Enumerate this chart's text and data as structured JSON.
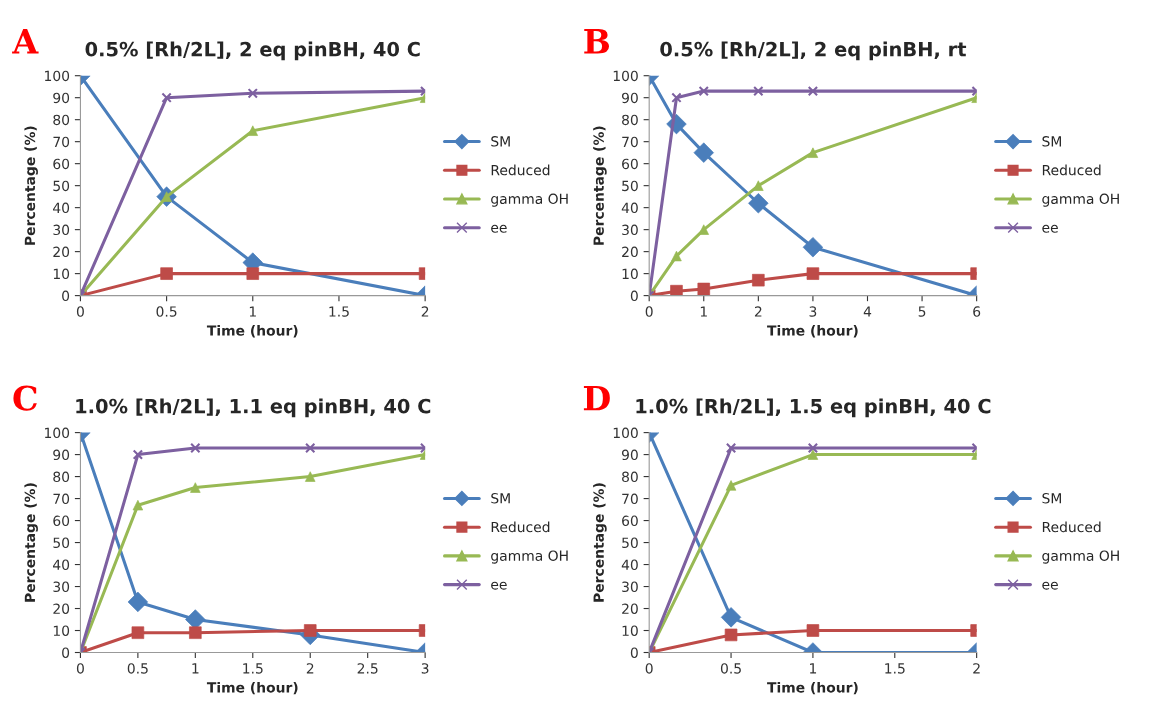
{
  "chart_data": [
    {
      "type": "line",
      "title": "0.5% [Rh/2L], 2 eq pinBH, 40 C",
      "annotations": [
        "A"
      ],
      "xlabel": "Time (hour)",
      "ylabel": "Percentage (%)",
      "x": [
        0,
        0.5,
        1,
        2
      ],
      "xlim": [
        0,
        2
      ],
      "xticks": [
        0,
        0.5,
        1,
        1.5,
        2
      ],
      "ylim": [
        0,
        100
      ],
      "yticks": [
        0,
        10,
        20,
        30,
        40,
        50,
        60,
        70,
        80,
        90,
        100
      ],
      "legend": "right",
      "grid": false,
      "line_style": "solid",
      "series": [
        {
          "name": "SM",
          "color": "#4a7ebb",
          "marker": "diamond",
          "values": [
            100,
            45,
            15,
            0
          ]
        },
        {
          "name": "Reduced",
          "color": "#be4b48",
          "marker": "square",
          "values": [
            0,
            10,
            10,
            10
          ]
        },
        {
          "name": "gamma OH",
          "color": "#98b954",
          "marker": "triangle",
          "values": [
            0,
            45,
            75,
            90
          ]
        },
        {
          "name": "ee",
          "color": "#7d60a0",
          "marker": "cross",
          "values": [
            0,
            90,
            92,
            93
          ]
        }
      ]
    },
    {
      "type": "line",
      "title": "0.5% [Rh/2L], 2 eq pinBH, rt",
      "annotations": [
        "B"
      ],
      "xlabel": "Time (hour)",
      "ylabel": "Percentage (%)",
      "x": [
        0,
        0.5,
        1,
        2,
        3,
        6
      ],
      "xlim": [
        0,
        6
      ],
      "xticks": [
        0,
        1,
        2,
        3,
        4,
        5,
        6
      ],
      "ylim": [
        0,
        100
      ],
      "yticks": [
        0,
        10,
        20,
        30,
        40,
        50,
        60,
        70,
        80,
        90,
        100
      ],
      "legend": "right",
      "grid": false,
      "line_style": "solid",
      "series": [
        {
          "name": "SM",
          "color": "#4a7ebb",
          "marker": "diamond",
          "values": [
            100,
            78,
            65,
            42,
            22,
            0
          ]
        },
        {
          "name": "Reduced",
          "color": "#be4b48",
          "marker": "square",
          "values": [
            0,
            2,
            3,
            7,
            10,
            10
          ]
        },
        {
          "name": "gamma OH",
          "color": "#98b954",
          "marker": "triangle",
          "values": [
            0,
            18,
            30,
            50,
            65,
            90
          ]
        },
        {
          "name": "ee",
          "color": "#7d60a0",
          "marker": "cross",
          "values": [
            0,
            90,
            93,
            93,
            93,
            93
          ]
        }
      ]
    },
    {
      "type": "line",
      "title": "1.0% [Rh/2L], 1.1 eq pinBH, 40 C",
      "annotations": [
        "C"
      ],
      "xlabel": "Time (hour)",
      "ylabel": "Percentage (%)",
      "x": [
        0,
        0.5,
        1,
        2,
        3
      ],
      "xlim": [
        0,
        3
      ],
      "xticks": [
        0,
        0.5,
        1,
        1.5,
        2,
        2.5,
        3
      ],
      "ylim": [
        0,
        100
      ],
      "yticks": [
        0,
        10,
        20,
        30,
        40,
        50,
        60,
        70,
        80,
        90,
        100
      ],
      "legend": "right",
      "grid": false,
      "line_style": "solid",
      "series": [
        {
          "name": "SM",
          "color": "#4a7ebb",
          "marker": "diamond",
          "values": [
            100,
            23,
            15,
            8,
            0
          ]
        },
        {
          "name": "Reduced",
          "color": "#be4b48",
          "marker": "square",
          "values": [
            0,
            9,
            9,
            10,
            10
          ]
        },
        {
          "name": "gamma OH",
          "color": "#98b954",
          "marker": "triangle",
          "values": [
            0,
            67,
            75,
            80,
            90
          ]
        },
        {
          "name": "ee",
          "color": "#7d60a0",
          "marker": "cross",
          "values": [
            0,
            90,
            93,
            93,
            93
          ]
        }
      ]
    },
    {
      "type": "line",
      "title": "1.0% [Rh/2L], 1.5 eq pinBH, 40 C",
      "annotations": [
        "D"
      ],
      "xlabel": "Time (hour)",
      "ylabel": "Percentage (%)",
      "x": [
        0,
        0.5,
        1,
        2
      ],
      "xlim": [
        0,
        2
      ],
      "xticks": [
        0,
        0.5,
        1,
        1.5,
        2
      ],
      "ylim": [
        0,
        100
      ],
      "yticks": [
        0,
        10,
        20,
        30,
        40,
        50,
        60,
        70,
        80,
        90,
        100
      ],
      "legend": "right",
      "grid": false,
      "line_style": "solid",
      "series": [
        {
          "name": "SM",
          "color": "#4a7ebb",
          "marker": "diamond",
          "values": [
            100,
            16,
            0,
            0
          ]
        },
        {
          "name": "Reduced",
          "color": "#be4b48",
          "marker": "square",
          "values": [
            0,
            8,
            10,
            10
          ]
        },
        {
          "name": "gamma OH",
          "color": "#98b954",
          "marker": "triangle",
          "values": [
            0,
            76,
            90,
            90
          ]
        },
        {
          "name": "ee",
          "color": "#7d60a0",
          "marker": "cross",
          "values": [
            0,
            93,
            93,
            93
          ]
        }
      ]
    }
  ]
}
